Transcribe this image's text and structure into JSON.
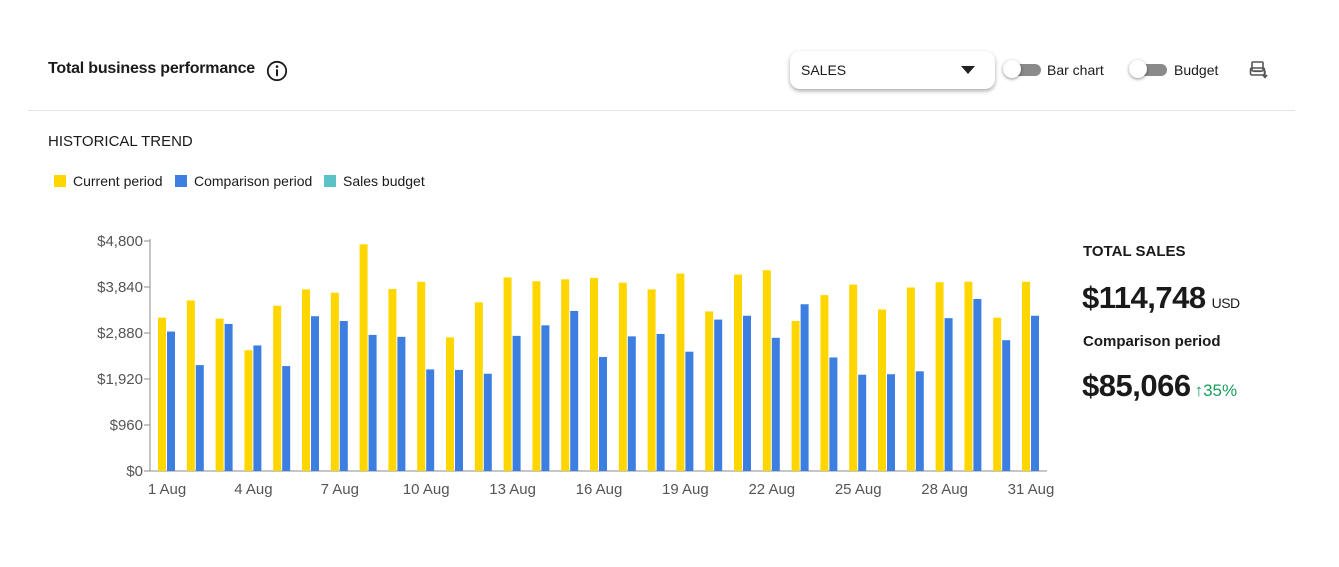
{
  "header": {
    "title": "Total business performance",
    "info_icon": "info-circle-icon",
    "metric_select": {
      "value": "SALES"
    },
    "bar_chart_toggle": {
      "label": "Bar chart",
      "on": false
    },
    "budget_toggle": {
      "label": "Budget",
      "on": false
    },
    "export_icon": "export-download-icon"
  },
  "section_title": "HISTORICAL TREND",
  "legend": [
    {
      "label": "Current period",
      "color": "#FFD600"
    },
    {
      "label": "Comparison period",
      "color": "#3C7FE0"
    },
    {
      "label": "Sales budget",
      "color": "#5BC2C7"
    }
  ],
  "summary": {
    "total_label": "TOTAL SALES",
    "total_value": "$114,748",
    "total_unit": "USD",
    "comparison_label": "Comparison period",
    "comparison_value": "$85,066",
    "change": "35%",
    "change_direction": "up",
    "change_color": "#1a9e5c"
  },
  "chart_data": {
    "type": "bar",
    "categories": [
      "1 Aug",
      "2 Aug",
      "3 Aug",
      "4 Aug",
      "5 Aug",
      "6 Aug",
      "7 Aug",
      "8 Aug",
      "9 Aug",
      "10 Aug",
      "11 Aug",
      "12 Aug",
      "13 Aug",
      "14 Aug",
      "15 Aug",
      "16 Aug",
      "17 Aug",
      "18 Aug",
      "19 Aug",
      "20 Aug",
      "21 Aug",
      "22 Aug",
      "23 Aug",
      "24 Aug",
      "25 Aug",
      "26 Aug",
      "27 Aug",
      "28 Aug",
      "29 Aug",
      "30 Aug",
      "31 Aug"
    ],
    "x_tick_labels": [
      "1 Aug",
      "4 Aug",
      "7 Aug",
      "10 Aug",
      "13 Aug",
      "16 Aug",
      "19 Aug",
      "22 Aug",
      "25 Aug",
      "28 Aug",
      "31 Aug"
    ],
    "x_tick_every": 3,
    "y_ticks": [
      "$0",
      "$960",
      "$1,920",
      "$2,880",
      "$3,840",
      "$4,800"
    ],
    "y_tick_values": [
      0,
      960,
      1920,
      2880,
      3840,
      4800
    ],
    "ylim": [
      0,
      4800
    ],
    "series": [
      {
        "name": "Current period",
        "color": "#FFD600",
        "values": [
          3200,
          3560,
          3180,
          2520,
          3450,
          3790,
          3720,
          4730,
          3800,
          3950,
          2790,
          3520,
          4040,
          3960,
          4000,
          4030,
          3930,
          3790,
          4120,
          3330,
          4100,
          4190,
          3130,
          3670,
          3890,
          3370,
          3830,
          3940,
          3950,
          3200,
          3950
        ]
      },
      {
        "name": "Comparison period",
        "color": "#3C7FE0",
        "values": [
          2910,
          2210,
          3070,
          2620,
          2190,
          3230,
          3130,
          2840,
          2800,
          2120,
          2110,
          2030,
          2820,
          3040,
          3340,
          2380,
          2810,
          2860,
          2490,
          3160,
          3240,
          2780,
          3480,
          2370,
          2010,
          2020,
          2080,
          3190,
          3590,
          2730,
          3240
        ]
      }
    ],
    "grid": false,
    "legend_position": "top-left"
  }
}
